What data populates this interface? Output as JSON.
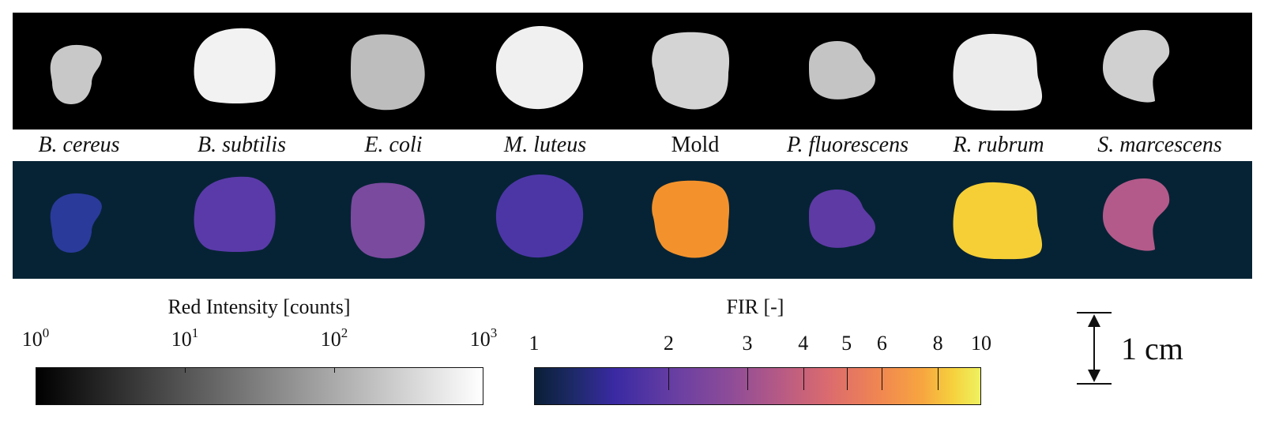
{
  "species": [
    {
      "label": "B. cereus",
      "italic": true
    },
    {
      "label": "B. subtilis",
      "italic": true
    },
    {
      "label": "E. coli",
      "italic": true
    },
    {
      "label": "M. luteus",
      "italic": true
    },
    {
      "label": "Mold",
      "italic": false
    },
    {
      "label": "P. fluorescens",
      "italic": true
    },
    {
      "label": "R. rubrum",
      "italic": true
    },
    {
      "label": "S. marcescens",
      "italic": true
    }
  ],
  "colony_colors": {
    "background_top": "#000000",
    "background_bottom": "#062335",
    "top": [
      "#c8c8c8",
      "#f2f2f2",
      "#bdbdbd",
      "#f0f0f0",
      "#d4d4d4",
      "#c4c4c4",
      "#ececec",
      "#d0d0d0"
    ],
    "bottom": [
      "#2a3a9a",
      "#5a3aa8",
      "#7a4a9e",
      "#4c36a6",
      "#f3922c",
      "#5e3aa4",
      "#f6cf36",
      "#b35a8a"
    ]
  },
  "red_intensity_colorbar": {
    "title": "Red Intensity [counts]",
    "ticks": [
      {
        "base": "10",
        "exp": "0"
      },
      {
        "base": "10",
        "exp": "1"
      },
      {
        "base": "10",
        "exp": "2"
      },
      {
        "base": "10",
        "exp": "3"
      }
    ],
    "scale": "log",
    "colors": [
      "#000000",
      "#ffffff"
    ]
  },
  "fir_colorbar": {
    "title": "FIR [-]",
    "ticks": [
      "1",
      "2",
      "3",
      "4",
      "5",
      "6",
      "8",
      "10"
    ],
    "tick_values": [
      1,
      2,
      3,
      4,
      5,
      6,
      8,
      10
    ],
    "scale": "log",
    "colors": [
      "#0a1f36",
      "#3a2aa3",
      "#8e4c98",
      "#db6b6e",
      "#f7a63f",
      "#eef160"
    ]
  },
  "scale_bar": {
    "label": "1 cm"
  }
}
